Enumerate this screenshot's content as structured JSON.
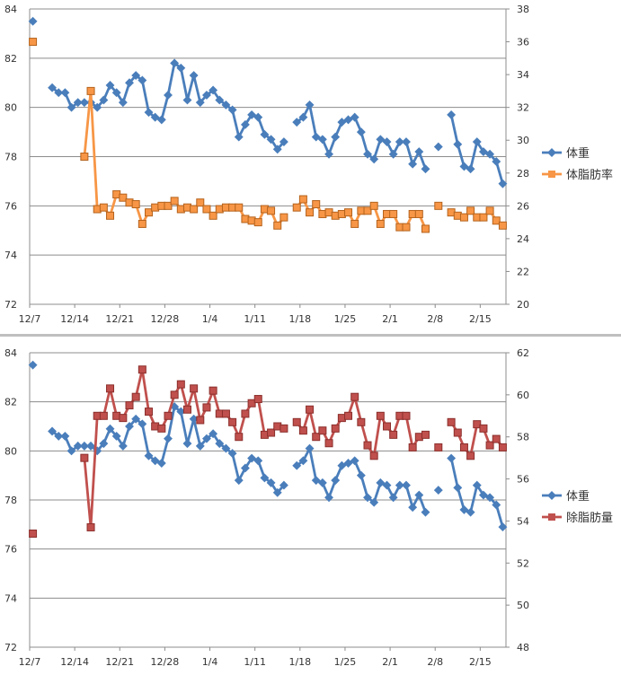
{
  "chart_data": [
    {
      "type": "line",
      "x": [
        "12/7",
        "12/8",
        "12/9",
        "12/10",
        "12/11",
        "12/12",
        "12/13",
        "12/14",
        "12/15",
        "12/16",
        "12/17",
        "12/18",
        "12/19",
        "12/20",
        "12/21",
        "12/22",
        "12/23",
        "12/24",
        "12/25",
        "12/26",
        "12/27",
        "12/28",
        "12/29",
        "12/30",
        "12/31",
        "1/1",
        "1/2",
        "1/3",
        "1/4",
        "1/5",
        "1/6",
        "1/7",
        "1/8",
        "1/9",
        "1/10",
        "1/11",
        "1/12",
        "1/13",
        "1/14",
        "1/15",
        "1/16",
        "1/17",
        "1/18",
        "1/19",
        "1/20",
        "1/21",
        "1/22",
        "1/23",
        "1/24",
        "1/25",
        "1/26",
        "1/27",
        "1/28",
        "1/29",
        "1/30",
        "1/31",
        "2/1",
        "2/2",
        "2/3",
        "2/4",
        "2/5",
        "2/6",
        "2/7",
        "2/8",
        "2/9",
        "2/10",
        "2/11",
        "2/12",
        "2/13",
        "2/14",
        "2/15",
        "2/16",
        "2/17",
        "2/18"
      ],
      "xticks": [
        "12/7",
        "12/14",
        "12/21",
        "12/28",
        "1/4",
        "1/11",
        "1/18",
        "1/25",
        "2/1",
        "2/8",
        "2/15"
      ],
      "ylim": [
        72,
        84
      ],
      "yticks": [
        "72",
        "74",
        "76",
        "78",
        "80",
        "82",
        "84"
      ],
      "y2lim": [
        20,
        38
      ],
      "y2ticks": [
        "20",
        "22",
        "24",
        "26",
        "28",
        "30",
        "32",
        "34",
        "36",
        "38"
      ],
      "series": [
        {
          "name": "体重",
          "axis": "left",
          "color": "#4a7ebb",
          "values": [
            83.5,
            null,
            null,
            80.8,
            80.6,
            80.6,
            80.0,
            80.2,
            80.2,
            80.2,
            80.0,
            80.3,
            80.9,
            80.6,
            80.2,
            81.0,
            81.3,
            81.1,
            79.8,
            79.6,
            79.5,
            80.5,
            81.8,
            81.6,
            80.3,
            81.3,
            80.2,
            80.5,
            80.7,
            80.3,
            80.1,
            79.9,
            78.8,
            79.3,
            79.7,
            79.6,
            78.9,
            78.7,
            78.3,
            78.6,
            null,
            79.4,
            79.6,
            80.1,
            78.8,
            78.7,
            78.1,
            78.8,
            79.4,
            79.5,
            79.6,
            79.0,
            78.1,
            77.9,
            78.7,
            78.6,
            78.1,
            78.6,
            78.6,
            77.7,
            78.2,
            77.5,
            null,
            78.4,
            null,
            79.7,
            78.5,
            77.6,
            77.5,
            78.6,
            78.2,
            78.1,
            77.8,
            76.9
          ]
        },
        {
          "name": "体脂肪率",
          "axis": "right",
          "color": "#f79646",
          "values": [
            36.0,
            null,
            null,
            null,
            null,
            null,
            null,
            null,
            29.0,
            33.0,
            25.8,
            25.9,
            25.4,
            26.7,
            26.5,
            26.2,
            26.1,
            24.9,
            25.6,
            25.9,
            26.0,
            26.0,
            26.3,
            25.8,
            25.9,
            25.8,
            26.2,
            25.8,
            25.4,
            25.8,
            25.9,
            25.9,
            25.9,
            25.2,
            25.1,
            25.0,
            25.8,
            25.7,
            24.8,
            25.3,
            null,
            25.9,
            26.4,
            25.6,
            26.1,
            25.5,
            25.6,
            25.4,
            25.5,
            25.6,
            24.9,
            25.7,
            25.7,
            26.0,
            24.9,
            25.5,
            25.5,
            24.7,
            24.7,
            25.5,
            25.5,
            24.6,
            null,
            26.0,
            null,
            25.6,
            25.4,
            25.3,
            25.7,
            25.3,
            25.3,
            25.7,
            25.1,
            24.8
          ]
        }
      ]
    },
    {
      "type": "line",
      "x": [
        "12/7",
        "12/8",
        "12/9",
        "12/10",
        "12/11",
        "12/12",
        "12/13",
        "12/14",
        "12/15",
        "12/16",
        "12/17",
        "12/18",
        "12/19",
        "12/20",
        "12/21",
        "12/22",
        "12/23",
        "12/24",
        "12/25",
        "12/26",
        "12/27",
        "12/28",
        "12/29",
        "12/30",
        "12/31",
        "1/1",
        "1/2",
        "1/3",
        "1/4",
        "1/5",
        "1/6",
        "1/7",
        "1/8",
        "1/9",
        "1/10",
        "1/11",
        "1/12",
        "1/13",
        "1/14",
        "1/15",
        "1/16",
        "1/17",
        "1/18",
        "1/19",
        "1/20",
        "1/21",
        "1/22",
        "1/23",
        "1/24",
        "1/25",
        "1/26",
        "1/27",
        "1/28",
        "1/29",
        "1/30",
        "1/31",
        "2/1",
        "2/2",
        "2/3",
        "2/4",
        "2/5",
        "2/6",
        "2/7",
        "2/8",
        "2/9",
        "2/10",
        "2/11",
        "2/12",
        "2/13",
        "2/14",
        "2/15",
        "2/16",
        "2/17",
        "2/18"
      ],
      "xticks": [
        "12/7",
        "12/14",
        "12/21",
        "12/28",
        "1/4",
        "1/11",
        "1/18",
        "1/25",
        "2/1",
        "2/8",
        "2/15"
      ],
      "ylim": [
        72,
        84
      ],
      "yticks": [
        "72",
        "74",
        "76",
        "78",
        "80",
        "82",
        "84"
      ],
      "y2lim": [
        48,
        62
      ],
      "y2ticks": [
        "48",
        "50",
        "52",
        "54",
        "56",
        "58",
        "60",
        "62"
      ],
      "series": [
        {
          "name": "体重",
          "axis": "left",
          "color": "#4a7ebb",
          "values": [
            83.5,
            null,
            null,
            80.8,
            80.6,
            80.6,
            80.0,
            80.2,
            80.2,
            80.2,
            80.0,
            80.3,
            80.9,
            80.6,
            80.2,
            81.0,
            81.3,
            81.1,
            79.8,
            79.6,
            79.5,
            80.5,
            81.8,
            81.6,
            80.3,
            81.3,
            80.2,
            80.5,
            80.7,
            80.3,
            80.1,
            79.9,
            78.8,
            79.3,
            79.7,
            79.6,
            78.9,
            78.7,
            78.3,
            78.6,
            null,
            79.4,
            79.6,
            80.1,
            78.8,
            78.7,
            78.1,
            78.8,
            79.4,
            79.5,
            79.6,
            79.0,
            78.1,
            77.9,
            78.7,
            78.6,
            78.1,
            78.6,
            78.6,
            77.7,
            78.2,
            77.5,
            null,
            78.4,
            null,
            79.7,
            78.5,
            77.6,
            77.5,
            78.6,
            78.2,
            78.1,
            77.8,
            76.9
          ]
        },
        {
          "name": "除脂肪量",
          "axis": "right",
          "color": "#c0504d",
          "values": [
            53.4,
            null,
            null,
            null,
            null,
            null,
            null,
            null,
            57.0,
            53.7,
            59.0,
            59.0,
            60.3,
            59.0,
            58.9,
            59.5,
            59.9,
            61.2,
            59.2,
            58.5,
            58.4,
            59.0,
            60.0,
            60.5,
            59.3,
            60.3,
            58.8,
            59.4,
            60.2,
            59.1,
            59.1,
            58.7,
            58.0,
            59.1,
            59.6,
            59.8,
            58.1,
            58.2,
            58.5,
            58.4,
            null,
            58.7,
            58.3,
            59.3,
            58.0,
            58.3,
            57.7,
            58.4,
            58.9,
            59.0,
            59.9,
            58.7,
            57.6,
            57.1,
            59.0,
            58.5,
            58.1,
            59.0,
            59.0,
            57.5,
            58.0,
            58.1,
            null,
            57.5,
            null,
            58.7,
            58.2,
            57.5,
            57.1,
            58.6,
            58.4,
            57.6,
            57.9,
            57.5
          ]
        }
      ]
    }
  ]
}
